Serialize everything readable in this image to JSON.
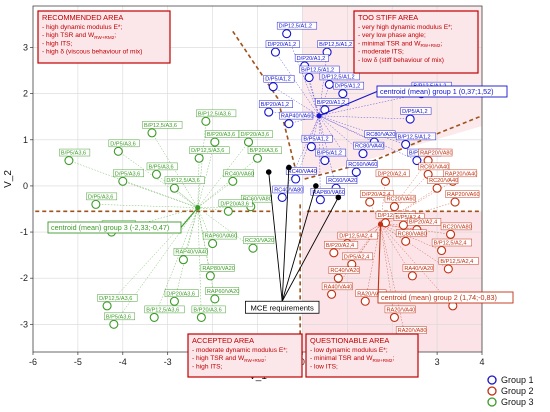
{
  "chart_data": {
    "type": "scatter",
    "xlabel": "V_1",
    "ylabel": "V_2",
    "xlim": [
      -6,
      4
    ],
    "ylim": [
      -3.6,
      3.9
    ],
    "xticks": [
      -6,
      -5,
      -4,
      -3,
      -2,
      -1,
      0,
      1,
      2,
      3,
      4
    ],
    "yticks": [
      -3,
      -2,
      -1,
      0,
      1,
      2,
      3
    ],
    "grid": true,
    "legend_position": "bottom-right",
    "series": [
      {
        "name": "Group 1",
        "color": "#1414cc",
        "points": [
          {
            "label": "D/P12,5/A1,2",
            "x": -0.35,
            "y": 3.3
          },
          {
            "label": "D/P20/A1,2",
            "x": -0.6,
            "y": 2.9
          },
          {
            "label": "B/P12,5/A1,2",
            "x": 0.55,
            "y": 2.9
          },
          {
            "label": "D/P20/A1,2",
            "x": 0.05,
            "y": 2.6
          },
          {
            "label": "B/P12,5/A1,2",
            "x": 0.15,
            "y": 2.35
          },
          {
            "label": "D/P5/A1,2",
            "x": -0.65,
            "y": 2.15
          },
          {
            "label": "D/P12,5/A1,2",
            "x": 0.6,
            "y": 2.2
          },
          {
            "label": "D/P5/A1,2",
            "x": 0.9,
            "y": 2.0
          },
          {
            "label": "B/P20/A1,2",
            "x": 0.5,
            "y": 1.65
          },
          {
            "label": "B/P12,5/A1,2",
            "x": 2.65,
            "y": 2.0
          },
          {
            "label": "B/P20/A1,2",
            "x": -0.75,
            "y": 1.6
          },
          {
            "label": "D/P5/A1,2",
            "x": 2.4,
            "y": 1.45
          },
          {
            "label": "RAP40/VA60",
            "x": -0.3,
            "y": 1.35
          },
          {
            "label": "B/P12,5/A1,2",
            "x": 2.3,
            "y": 0.9
          },
          {
            "label": "RC80/VA20",
            "x": 1.6,
            "y": 0.95
          },
          {
            "label": "RC80/VA40",
            "x": 1.35,
            "y": 0.7
          },
          {
            "label": "B/P20/A1,2",
            "x": 2.55,
            "y": 0.55
          },
          {
            "label": "B/P5/A1,2",
            "x": 0.5,
            "y": 0.55
          },
          {
            "label": "RC60/VA60",
            "x": 1.2,
            "y": 0.3
          },
          {
            "label": "B/P5/A1,2",
            "x": 0.2,
            "y": 0.85
          },
          {
            "label": "RC40/VA40",
            "x": -0.15,
            "y": 0.15
          },
          {
            "label": "RC40/VA80",
            "x": -0.45,
            "y": -0.25
          },
          {
            "label": "RAP80/VA60",
            "x": 0.4,
            "y": -0.3
          },
          {
            "label": "RC60/VA20",
            "x": 0.75,
            "y": -0.05
          }
        ]
      },
      {
        "name": "Group 2",
        "color": "#c03010",
        "points": [
          {
            "label": "RAP20/VA80",
            "x": 2.8,
            "y": 0.55
          },
          {
            "label": "RC60/VA40",
            "x": 2.8,
            "y": 0.25
          },
          {
            "label": "RAP20/VA40",
            "x": 3.35,
            "y": 0.1
          },
          {
            "label": "RC20/VA40",
            "x": 3.0,
            "y": -0.05
          },
          {
            "label": "D/P20/A2,4",
            "x": 1.85,
            "y": 0.1
          },
          {
            "label": "D/P20/A2,4",
            "x": 1.5,
            "y": -0.35
          },
          {
            "label": "RC20/VA60",
            "x": 2.05,
            "y": -0.45
          },
          {
            "label": "RAP20/VA60",
            "x": 3.4,
            "y": -0.35
          },
          {
            "label": "D/P12,5/A2,4",
            "x": 1.85,
            "y": -0.8
          },
          {
            "label": "B/P5/A2,4",
            "x": 2.25,
            "y": -0.85
          },
          {
            "label": "B/P20/A2,4",
            "x": 2.55,
            "y": -0.95
          },
          {
            "label": "RC20/VA80",
            "x": 3.3,
            "y": -1.05
          },
          {
            "label": "RC80/VA80",
            "x": 2.3,
            "y": -1.2
          },
          {
            "label": "D/P12,5/A2,4",
            "x": 1.0,
            "y": -1.25
          },
          {
            "label": "B/P12,5/A2,4",
            "x": 3.1,
            "y": -1.4
          },
          {
            "label": "B/P20/A2,4",
            "x": 0.7,
            "y": -1.45
          },
          {
            "label": "D/P5/A2,4",
            "x": 1.1,
            "y": -1.7
          },
          {
            "label": "RC40/VA20",
            "x": 0.8,
            "y": -2.0
          },
          {
            "label": "RA40/VA20",
            "x": 2.45,
            "y": -1.95
          },
          {
            "label": "B/P12,5/A2,4",
            "x": 3.25,
            "y": -1.8
          },
          {
            "label": "RA40/VA40",
            "x": 0.65,
            "y": -2.35
          },
          {
            "label": "RA20/VA20",
            "x": 1.4,
            "y": -2.5
          },
          {
            "label": "RA20/VA60",
            "x": 3.35,
            "y": -2.6
          },
          {
            "label": "RA20/VA40",
            "x": 2.05,
            "y": -2.85
          },
          {
            "label": "RA20/VA80",
            "x": 2.3,
            "y": -3.3
          }
        ]
      },
      {
        "name": "Group 3",
        "color": "#3c9a28",
        "points": [
          {
            "label": "B/P12,5/A3,6",
            "x": -3.35,
            "y": 1.15
          },
          {
            "label": "B/P5/A3,6",
            "x": -5.2,
            "y": 0.55
          },
          {
            "label": "D/P5/A3,6",
            "x": -4.1,
            "y": 0.75
          },
          {
            "label": "D/P5/A3,6",
            "x": -4.0,
            "y": 0.1
          },
          {
            "label": "B/P12,5/A3,6",
            "x": -2.15,
            "y": 1.4
          },
          {
            "label": "B/P20/A3,6",
            "x": -1.95,
            "y": 0.95
          },
          {
            "label": "D/P20/A3,6",
            "x": -1.2,
            "y": 0.95
          },
          {
            "label": "B/P20/A3,6",
            "x": -1.0,
            "y": 0.6
          },
          {
            "label": "D/P12,5/A3,6",
            "x": -2.3,
            "y": 0.6
          },
          {
            "label": "B/P5/A3,6",
            "x": -3.25,
            "y": 0.25
          },
          {
            "label": "RC40/VA60",
            "x": -1.55,
            "y": 0.1
          },
          {
            "label": "D/P12,5/A3,6",
            "x": -2.85,
            "y": -0.05
          },
          {
            "label": "D/P5/A3,6",
            "x": -4.6,
            "y": -0.4
          },
          {
            "label": "RC60/VA80",
            "x": -1.15,
            "y": -0.45
          },
          {
            "label": "D/P20/A3,6",
            "x": -1.65,
            "y": -0.55
          },
          {
            "label": "RAP60/VA40",
            "x": -4.25,
            "y": -1.0
          },
          {
            "label": "RAP60/VA60",
            "x": -2.0,
            "y": -1.25
          },
          {
            "label": "RC20/VA20",
            "x": -1.1,
            "y": -1.35
          },
          {
            "label": "RAP40/VA40",
            "x": -2.65,
            "y": -1.6
          },
          {
            "label": "RAP80/VA20",
            "x": -2.05,
            "y": -1.95
          },
          {
            "label": "RAP60/VA20",
            "x": -1.95,
            "y": -2.45
          },
          {
            "label": "D/P12,5/A3,6",
            "x": -4.35,
            "y": -2.6
          },
          {
            "label": "B/P12,5/A3,6",
            "x": -3.3,
            "y": -2.85
          },
          {
            "label": "D/P20/A3,6",
            "x": -2.85,
            "y": -2.5
          },
          {
            "label": "B/P20/A3,6",
            "x": -2.25,
            "y": -2.85
          },
          {
            "label": "B/P5/A3,6",
            "x": -4.2,
            "y": -3.0
          }
        ]
      }
    ],
    "centroids": [
      {
        "label": "centroid  (mean)  group 1 (0,37;1,52)",
        "x": 0.37,
        "y": 1.52,
        "color": "#1414cc"
      },
      {
        "label": "centroid  (mean)  group 2 (1,74;-0,83)",
        "x": 1.74,
        "y": -0.83,
        "color": "#c03010"
      },
      {
        "label": "centroid  (mean)  group 3 (-2,33;-0,47)",
        "x": -2.33,
        "y": -0.47,
        "color": "#3c9a28"
      }
    ],
    "mce_points": [
      {
        "x": -0.75,
        "y": 0.3
      },
      {
        "x": -0.3,
        "y": 0.4
      },
      {
        "x": 0.3,
        "y": 0.0
      },
      {
        "x": 0.8,
        "y": -0.25
      }
    ],
    "mce_label": "MCE requirements",
    "areas": [
      {
        "title": "RECOMMENDED AREA",
        "lines": [
          "- high dynamic modulus E*;",
          "- high TSR and W",
          "- high ITS;",
          "- high δ (viscous behaviour of mix)"
        ],
        "subscript": "RW+RM2",
        "subscript_line": 1,
        "subscript_suffix": ";"
      },
      {
        "title": "TOO STIFF AREA",
        "lines": [
          "- very high dynamic modulus E*;",
          "- very low phase angle;",
          "- minimal TSR and W",
          "- moderate ITS;",
          "- low δ (stiff behaviour of mix)"
        ],
        "subscript": "RW+RM2",
        "subscript_line": 2,
        "subscript_suffix": ";"
      },
      {
        "title": "ACCEPTED AREA",
        "lines": [
          "- moderate dynamic modulus E*;",
          "- high TSR and W",
          "- high ITS;"
        ],
        "subscript": "RW+RM2",
        "subscript_line": 1,
        "subscript_suffix": ";"
      },
      {
        "title": "QUESTIONABLE AREA",
        "lines": [
          "- low dynamic modulus E*;",
          "- minimal TSR and W",
          "- low ITS;"
        ],
        "subscript": "RW+RM2",
        "subscript_line": 1,
        "subscript_suffix": ";"
      }
    ]
  }
}
